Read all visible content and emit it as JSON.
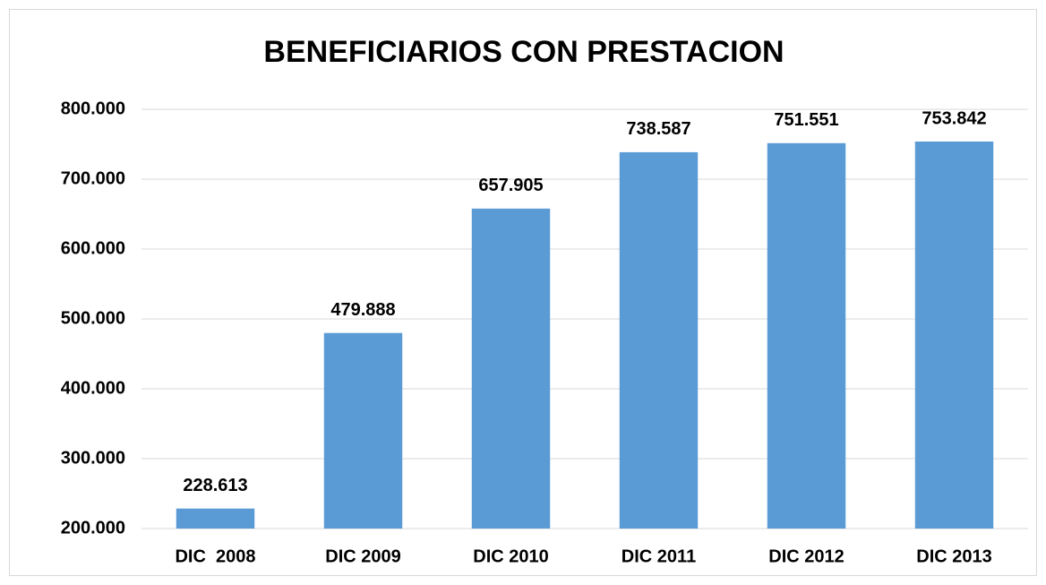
{
  "chart_data": {
    "type": "bar",
    "title": "BENEFICIARIOS CON PRESTACION",
    "categories": [
      "DIC  2008",
      "DIC 2009",
      "DIC 2010",
      "DIC 2011",
      "DIC 2012",
      "DIC 2013"
    ],
    "values": [
      228613,
      479888,
      657905,
      738587,
      751551,
      753842
    ],
    "value_labels": [
      "228.613",
      "479.888",
      "657.905",
      "738.587",
      "751.551",
      "753.842"
    ],
    "color": "#5b9bd5",
    "ylim": [
      200000,
      800000
    ],
    "yticks": [
      {
        "value": 200000,
        "label": "200.000"
      },
      {
        "value": 300000,
        "label": "300.000"
      },
      {
        "value": 400000,
        "label": "400.000"
      },
      {
        "value": 500000,
        "label": "500.000"
      },
      {
        "value": 600000,
        "label": "600.000"
      },
      {
        "value": 700000,
        "label": "700.000"
      },
      {
        "value": 800000,
        "label": "800.000"
      }
    ],
    "grid": true
  }
}
